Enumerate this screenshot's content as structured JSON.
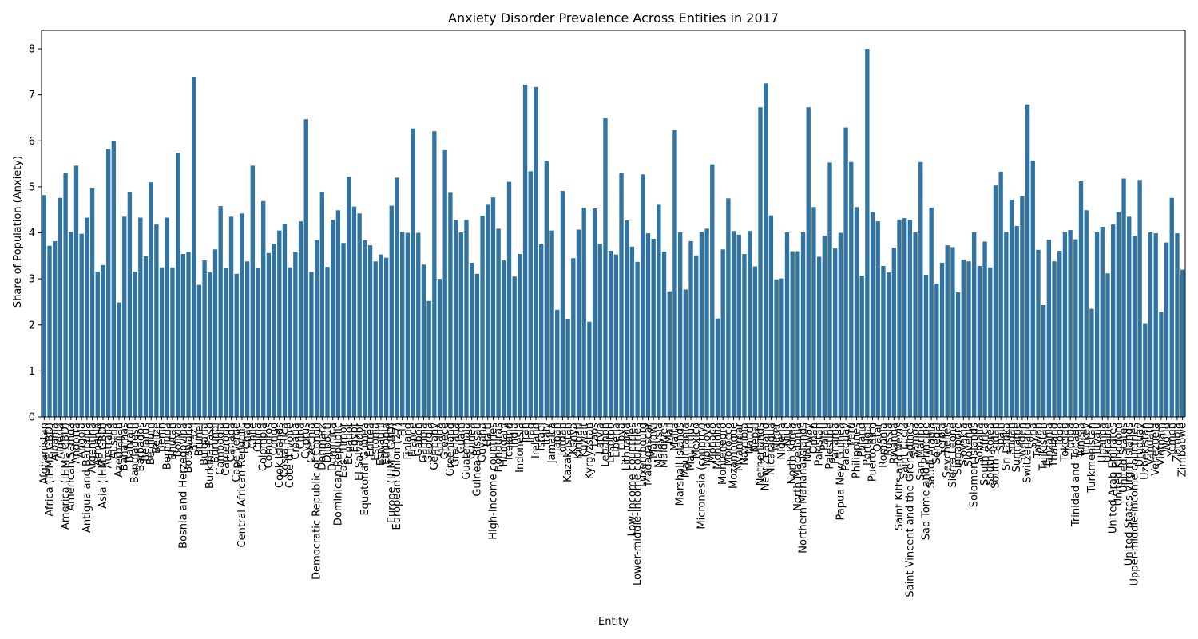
{
  "chart_data": {
    "type": "bar",
    "title": "Anxiety Disorder Prevalence Across Entities in 2017",
    "xlabel": "Entity",
    "ylabel": "Share of Population (Anxiety)",
    "ylim": [
      0,
      8.4
    ],
    "yticks": [
      0,
      1,
      2,
      3,
      4,
      5,
      6,
      7,
      8
    ],
    "grid": false,
    "color": "#3274a1",
    "categories": [
      "Afghanistan",
      "Africa (IHME GBD)",
      "Albania",
      "Algeria",
      "America (IHME GBD)",
      "American Samoa",
      "Andorra",
      "Angola",
      "Antigua and Barbuda",
      "Argentina",
      "Armenia",
      "Asia (IHME GBD)",
      "Australia",
      "Austria",
      "Azerbaijan",
      "Bahamas",
      "Bahrain",
      "Bangladesh",
      "Barbados",
      "Belarus",
      "Belgium",
      "Belize",
      "Benin",
      "Bermuda",
      "Bhutan",
      "Bolivia",
      "Bosnia and Herzegovina",
      "Botswana",
      "Brazil",
      "Brunei",
      "Bulgaria",
      "Burkina Faso",
      "Burundi",
      "Cambodia",
      "Cameroon",
      "Canada",
      "Cape Verde",
      "Central African Republic",
      "Chad",
      "Chile",
      "China",
      "Colombia",
      "Comoros",
      "Congo",
      "Cook Islands",
      "Costa Rica",
      "Cote d'Ivoire",
      "Croatia",
      "Cuba",
      "Cyprus",
      "Czechia",
      "Democratic Republic of Congo",
      "Denmark",
      "Djibouti",
      "Dominica",
      "Dominican Republic",
      "East Timor",
      "Ecuador",
      "Egypt",
      "El Salvador",
      "Equatorial Guinea",
      "Eritrea",
      "Estonia",
      "Eswatini",
      "Ethiopia",
      "Europe (IHME GBD)",
      "European Union (27)",
      "Fiji",
      "Finland",
      "France",
      "Gabon",
      "Gambia",
      "Georgia",
      "Germany",
      "Ghana",
      "Greece",
      "Greenland",
      "Grenada",
      "Guam",
      "Guatemala",
      "Guinea",
      "Guinea-Bissau",
      "Guyana",
      "Haiti",
      "High-income countries",
      "Honduras",
      "Hungary",
      "Iceland",
      "India",
      "Indonesia",
      "Iran",
      "Iraq",
      "Ireland",
      "Israel",
      "Italy",
      "Jamaica",
      "Japan",
      "Jordan",
      "Kazakhstan",
      "Kenya",
      "Kiribati",
      "Kuwait",
      "Kyrgyzstan",
      "Laos",
      "Latvia",
      "Lebanon",
      "Lesotho",
      "Liberia",
      "Libya",
      "Lithuania",
      "Low-income countries",
      "Lower-middle-income countries",
      "Luxembourg",
      "Madagascar",
      "Malawi",
      "Malaysia",
      "Maldives",
      "Mali",
      "Malta",
      "Marshall Islands",
      "Mauritania",
      "Mauritius",
      "Mexico",
      "Micronesia (country)",
      "Moldova",
      "Monaco",
      "Mongolia",
      "Montenegro",
      "Morocco",
      "Mozambique",
      "Myanmar",
      "Namibia",
      "Nauru",
      "Nepal",
      "Netherlands",
      "New Zealand",
      "Nicaragua",
      "Niger",
      "Nigeria",
      "Niue",
      "North Korea",
      "North Macedonia",
      "Northern Mariana Islands",
      "Norway",
      "Oman",
      "Pakistan",
      "Palau",
      "Palestine",
      "Panama",
      "Papua New Guinea",
      "Paraguay",
      "Peru",
      "Philippines",
      "Poland",
      "Portugal",
      "Puerto Rico",
      "Qatar",
      "Romania",
      "Russia",
      "Rwanda",
      "Saint Kitts and Nevis",
      "Saint Lucia",
      "Saint Vincent and the Grenadines",
      "Samoa",
      "San Marino",
      "Sao Tome and Principe",
      "Saudi Arabia",
      "Senegal",
      "Serbia",
      "Seychelles",
      "Sierra Leone",
      "Singapore",
      "Slovakia",
      "Slovenia",
      "Solomon Islands",
      "Somalia",
      "South Africa",
      "South Korea",
      "South Sudan",
      "Spain",
      "Sri Lanka",
      "Sudan",
      "Suriname",
      "Sweden",
      "Switzerland",
      "Syria",
      "Taiwan",
      "Tajikistan",
      "Tanzania",
      "Thailand",
      "Togo",
      "Tokelau",
      "Tonga",
      "Trinidad and Tobago",
      "Tunisia",
      "Turkey",
      "Turkmenistan",
      "Tuvalu",
      "Uganda",
      "Ukraine",
      "United Arab Emirates",
      "United Kingdom",
      "United States",
      "United States Virgin Islands",
      "Upper-middle-income countries",
      "Uruguay",
      "Uzbekistan",
      "Vanuatu",
      "Venezuela",
      "Vietnam",
      "World",
      "Yemen",
      "Zambia",
      "Zimbabwe"
    ],
    "values": [
      4.82,
      3.72,
      3.82,
      4.76,
      5.3,
      4.02,
      5.46,
      3.98,
      4.33,
      4.98,
      3.16,
      3.3,
      5.82,
      6.0,
      2.49,
      4.35,
      4.89,
      3.16,
      4.33,
      3.49,
      5.1,
      4.18,
      3.25,
      4.33,
      3.25,
      5.74,
      3.54,
      3.59,
      7.39,
      2.87,
      3.4,
      3.14,
      3.64,
      4.58,
      3.23,
      4.35,
      3.11,
      4.42,
      3.38,
      5.46,
      3.23,
      4.69,
      3.56,
      3.76,
      4.05,
      4.2,
      3.25,
      3.59,
      4.25,
      6.47,
      3.15,
      3.84,
      4.89,
      3.26,
      4.28,
      4.49,
      3.78,
      5.22,
      4.57,
      4.42,
      3.84,
      3.73,
      3.38,
      3.53,
      3.46,
      4.59,
      5.2,
      4.02,
      4.0,
      6.27,
      4.0,
      3.31,
      2.52,
      6.21,
      3.0,
      5.8,
      4.87,
      4.28,
      4.01,
      4.28,
      3.35,
      3.11,
      4.37,
      4.61,
      4.77,
      4.09,
      3.4,
      5.11,
      3.05,
      3.54,
      7.22,
      5.34,
      7.17,
      3.75,
      5.56,
      4.05,
      2.33,
      4.91,
      2.12,
      3.45,
      4.07,
      4.54,
      2.07,
      4.53,
      3.76,
      6.49,
      3.61,
      3.53,
      5.3,
      4.27,
      3.7,
      3.37,
      5.27,
      3.99,
      3.87,
      4.61,
      3.59,
      2.73,
      6.23,
      4.01,
      2.77,
      3.82,
      3.51,
      4.02,
      4.09,
      5.49,
      2.14,
      3.64,
      4.75,
      4.04,
      3.96,
      3.54,
      4.04,
      3.27,
      6.73,
      7.25,
      4.38,
      2.99,
      3.01,
      4.01,
      3.6,
      3.6,
      4.01,
      6.73,
      4.56,
      3.48,
      3.94,
      5.53,
      3.66,
      4.0,
      6.29,
      5.54,
      4.56,
      3.07,
      8.0,
      4.45,
      4.25,
      3.28,
      3.14,
      3.68,
      4.29,
      4.32,
      4.28,
      4.01,
      5.54,
      3.09,
      4.55,
      2.9,
      3.35,
      3.73,
      3.69,
      2.71,
      3.42,
      3.38,
      4.01,
      3.28,
      3.81,
      3.25,
      5.03,
      5.33,
      4.02,
      4.72,
      4.15,
      4.8,
      6.79,
      5.57,
      3.63,
      2.43,
      3.85,
      3.38,
      3.61,
      4.01,
      4.06,
      3.86,
      5.12,
      4.49,
      2.35,
      4.01,
      4.13,
      3.12,
      4.18,
      4.45,
      5.18,
      4.35,
      3.94,
      5.15,
      2.02,
      4.01,
      3.99,
      2.28,
      3.79,
      4.76,
      3.99,
      3.2
    ]
  }
}
